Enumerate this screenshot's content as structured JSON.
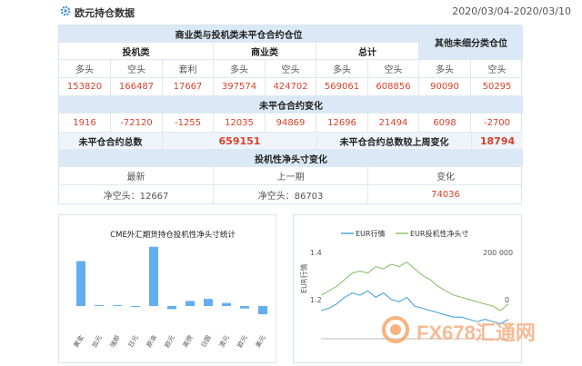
{
  "header": {
    "title": "欧元持仓数据",
    "date_range": "2020/03/04-2020/03/10"
  },
  "table": {
    "h1": {
      "commercial_noncommercial": "商业类与投机类未平仓合约仓位",
      "other_unclassified": "其他未细分类仓位"
    },
    "h2": {
      "speculative": "投机类",
      "commercial": "商业类",
      "total": "总计"
    },
    "h3": [
      "多头",
      "空头",
      "套利",
      "多头",
      "空头",
      "多头",
      "空头",
      "多头",
      "空头"
    ],
    "values": [
      "153820",
      "166487",
      "17667",
      "397574",
      "424702",
      "569061",
      "608856",
      "90090",
      "50295"
    ],
    "oi_change_title": "未平仓合约变化",
    "changes": [
      "1916",
      "-72120",
      "-1255",
      "12035",
      "94869",
      "12696",
      "21494",
      "6098",
      "-2700"
    ],
    "total_oi_label": "未平仓合约总数",
    "total_oi_value": "659151",
    "weekly_change_label": "未平仓合约总数较上周变化",
    "weekly_change_value": "18794",
    "net_change_title": "投机性净头寸变化",
    "net_headers": {
      "latest": "最新",
      "previous": "上一期",
      "change": "变化"
    },
    "net_values": {
      "latest": "净空头：12667",
      "previous": "净空头：86703",
      "change": "74036"
    }
  },
  "bar_panel": {
    "title": "CME外汇期货持仓投机性净头寸统计"
  },
  "chart_data": [
    {
      "type": "bar",
      "title": "CME外汇期货持仓投机性净头寸统计",
      "categories": [
        "黄金",
        "加元",
        "瑞郎",
        "日元",
        "原油",
        "欧元",
        "英镑",
        "日圆",
        "澳元",
        "欧元",
        "美元"
      ],
      "values": [
        22,
        0,
        0,
        -0.3,
        29,
        -1.5,
        2.5,
        3.5,
        1.5,
        -1.2,
        -4
      ],
      "axis_visible": false
    },
    {
      "type": "line",
      "legend": [
        "EUR行情",
        "EUR投机性净头寸"
      ],
      "legend_position": "top",
      "colors": [
        "#4aa3d8",
        "#8cc26e"
      ],
      "y_left_label": "EUR行情",
      "y_left_ticks": [
        "1.4",
        "1.2"
      ],
      "y_right_ticks": [
        "200 000",
        "0"
      ],
      "series": [
        {
          "name": "EUR行情",
          "values": [
            1.16,
            1.17,
            1.19,
            1.22,
            1.24,
            1.23,
            1.25,
            1.22,
            1.24,
            1.21,
            1.2,
            1.22,
            1.18,
            1.17,
            1.16,
            1.15,
            1.14,
            1.13,
            1.13,
            1.12,
            1.11,
            1.12,
            1.11,
            1.1,
            1.12
          ]
        },
        {
          "name": "EUR投机性净头寸",
          "values": [
            1.23,
            1.25,
            1.27,
            1.3,
            1.33,
            1.34,
            1.33,
            1.36,
            1.35,
            1.37,
            1.36,
            1.38,
            1.35,
            1.32,
            1.3,
            1.27,
            1.25,
            1.23,
            1.22,
            1.21,
            1.2,
            1.19,
            1.18,
            1.16,
            1.19
          ]
        }
      ]
    }
  ],
  "watermark": {
    "text": "FX678汇通网"
  }
}
